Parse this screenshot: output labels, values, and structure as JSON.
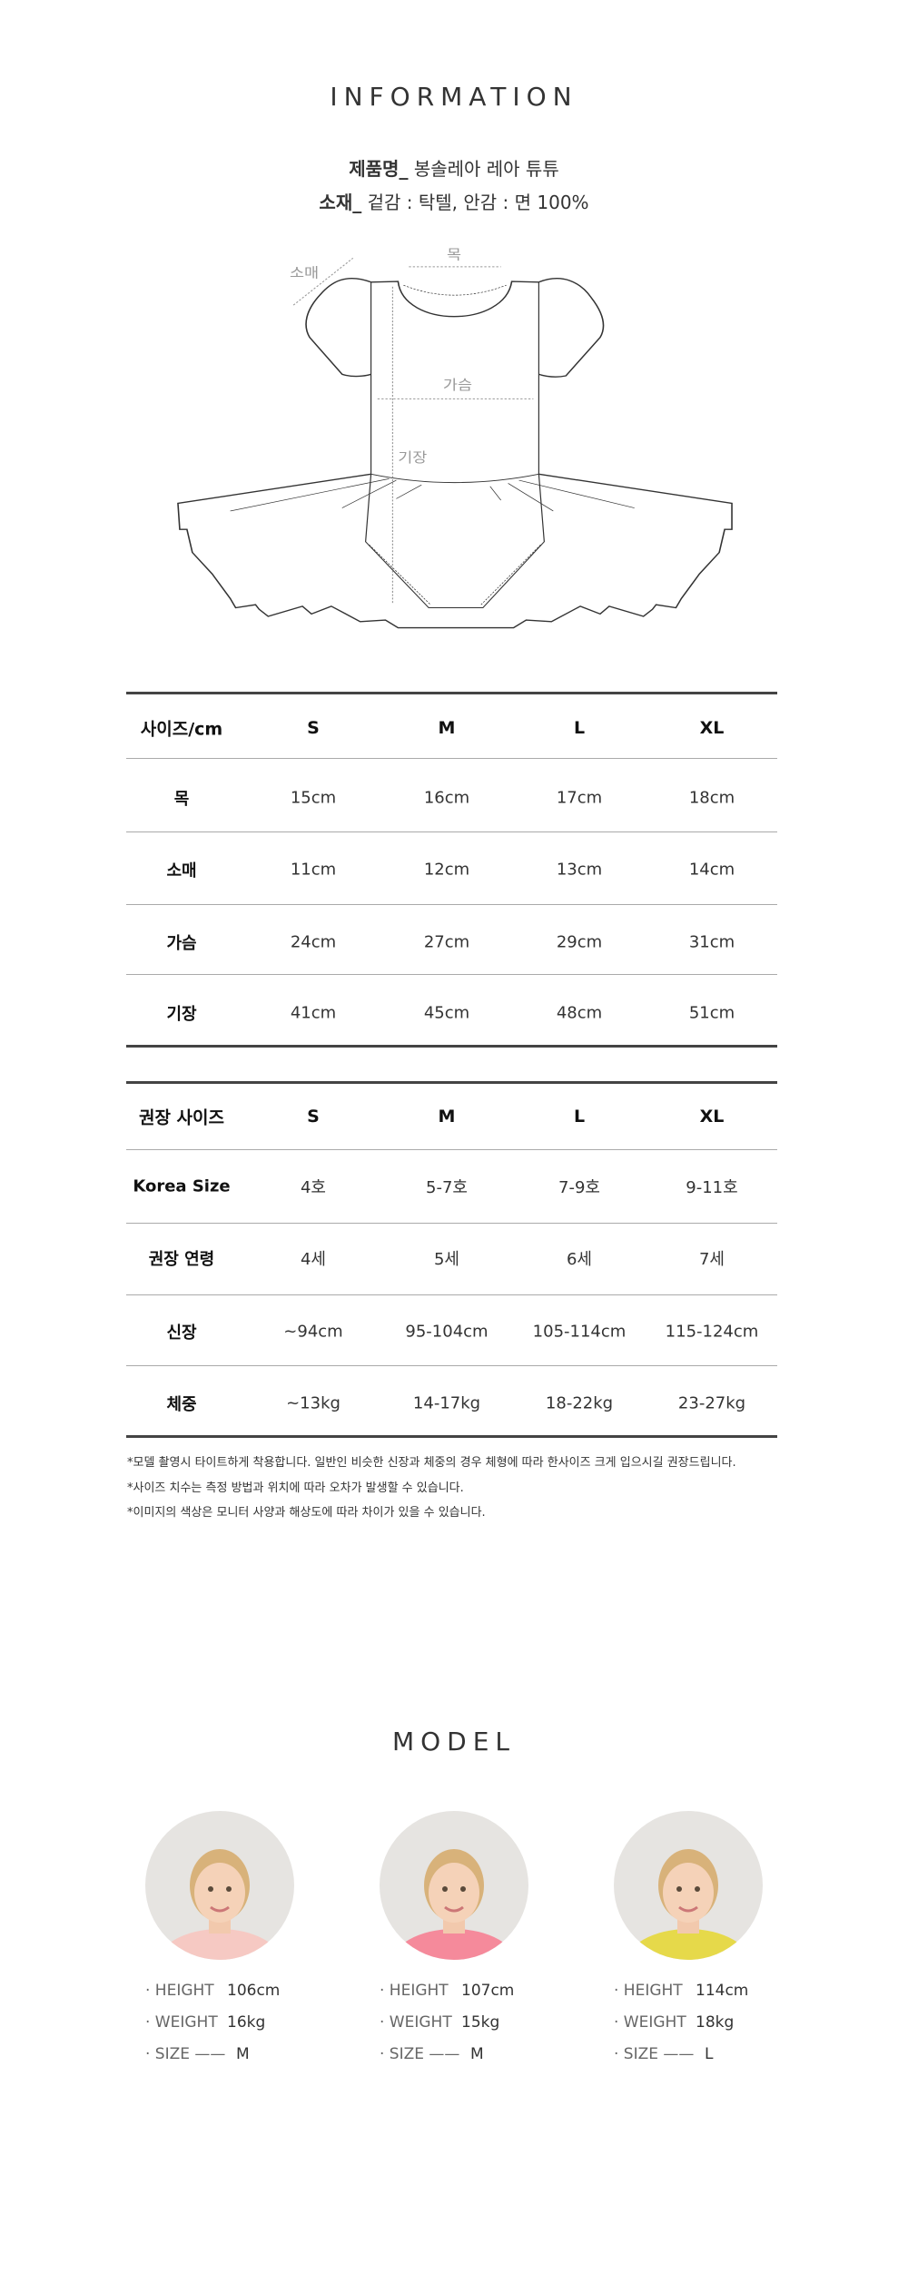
{
  "header": {
    "title": "INFORMATION",
    "product_label": "제품명_",
    "product_name": "봉솔레아 레아 튜튜",
    "material_label": "소재_",
    "material": "겉감 : 탁텔, 안감 : 면 100%"
  },
  "diagram": {
    "neck": "목",
    "sleeve": "소매",
    "chest": "가슴",
    "length": "기장"
  },
  "size_table": {
    "headers": [
      "사이즈/cm",
      "S",
      "M",
      "L",
      "XL"
    ],
    "rows": [
      [
        "목",
        "15cm",
        "16cm",
        "17cm",
        "18cm"
      ],
      [
        "소매",
        "11cm",
        "12cm",
        "13cm",
        "14cm"
      ],
      [
        "가슴",
        "24cm",
        "27cm",
        "29cm",
        "31cm"
      ],
      [
        "기장",
        "41cm",
        "45cm",
        "48cm",
        "51cm"
      ]
    ]
  },
  "recommend_table": {
    "headers": [
      "권장 사이즈",
      "S",
      "M",
      "L",
      "XL"
    ],
    "rows": [
      [
        "Korea Size",
        "4호",
        "5-7호",
        "7-9호",
        "9-11호"
      ],
      [
        "권장 연령",
        "4세",
        "5세",
        "6세",
        "7세"
      ],
      [
        "신장",
        "~94cm",
        "95-104cm",
        "105-114cm",
        "115-124cm"
      ],
      [
        "체중",
        "~13kg",
        "14-17kg",
        "18-22kg",
        "23-27kg"
      ]
    ]
  },
  "notes": [
    "*모델 촬영시 타이트하게 착용합니다. 일반인 비슷한 신장과 체중의 경우 체형에 따라 한사이즈 크게 입으시길 권장드립니다.",
    "*사이즈 치수는 측정 방법과 위치에 따라 오차가 발생할 수 있습니다.",
    "*이미지의 색상은 모니터 사양과 해상도에 따라 차이가 있을 수 있습니다."
  ],
  "models": {
    "title": "MODEL",
    "labels": {
      "height": "· HEIGHT",
      "weight": "· WEIGHT",
      "size": "· SIZE ——"
    },
    "items": [
      {
        "height": "106cm",
        "weight": "16kg",
        "size": "M",
        "shirt_color": "#f6c9c3"
      },
      {
        "height": "107cm",
        "weight": "15kg",
        "size": "M",
        "shirt_color": "#f58a9b"
      },
      {
        "height": "114cm",
        "weight": "18kg",
        "size": "L",
        "shirt_color": "#e6d94a"
      }
    ]
  }
}
